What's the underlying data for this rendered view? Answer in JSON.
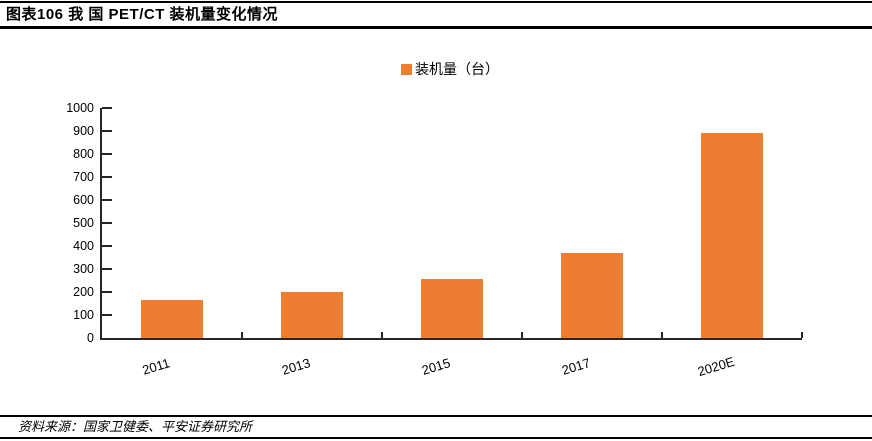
{
  "header": {
    "title": "图表106  我 国 PET/CT 装机量变化情况"
  },
  "legend": {
    "label": "装机量（台）",
    "color": "#ED7D31"
  },
  "footer": {
    "source": "资料来源：国家卫健委、平安证券研究所"
  },
  "chart_data": {
    "type": "bar",
    "title": "图表106 我国 PET/CT 装机量变化情况",
    "series_name": "装机量（台）",
    "categories": [
      "2011",
      "2013",
      "2015",
      "2017",
      "2020E"
    ],
    "values": [
      165,
      200,
      255,
      370,
      890
    ],
    "xlabel": "",
    "ylabel": "",
    "ylim": [
      0,
      1000
    ],
    "ytick_step": 100,
    "yticks": [
      0,
      100,
      200,
      300,
      400,
      500,
      600,
      700,
      800,
      900,
      1000
    ],
    "grid": false,
    "legend_position": "top-center",
    "bar_color": "#ED7D31",
    "axis_color": "#262626"
  }
}
